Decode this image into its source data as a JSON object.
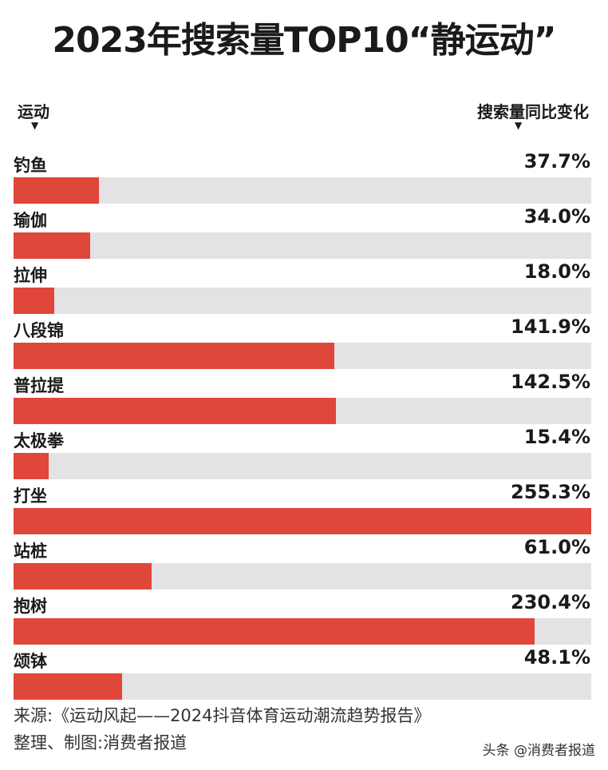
{
  "chart_data": {
    "type": "bar",
    "orientation": "horizontal",
    "title": "2023年搜索量TOP10“静运动”",
    "category_header": "运动",
    "value_header": "搜索量同比变化",
    "categories": [
      "钓鱼",
      "瑜伽",
      "拉伸",
      "八段锦",
      "普拉提",
      "太极拳",
      "打坐",
      "站桩",
      "抱树",
      "颂钵"
    ],
    "values": [
      37.7,
      34.0,
      18.0,
      141.9,
      142.5,
      15.4,
      255.3,
      61.0,
      230.4,
      48.1
    ],
    "value_labels": [
      "37.7%",
      "34.0%",
      "18.0%",
      "141.9%",
      "142.5%",
      "15.4%",
      "255.3%",
      "61.0%",
      "230.4%",
      "48.1%"
    ],
    "unit": "%",
    "xlim": [
      0,
      255.3
    ],
    "grid": false,
    "colors": {
      "bar": "#e0473b",
      "track": "#e4e2e5"
    }
  },
  "footer": {
    "source": "来源:《运动风起——2024抖音体育运动潮流趋势报告》",
    "credit": "整理、制图:消费者报道",
    "watermark": "头条 @消费者报道"
  }
}
